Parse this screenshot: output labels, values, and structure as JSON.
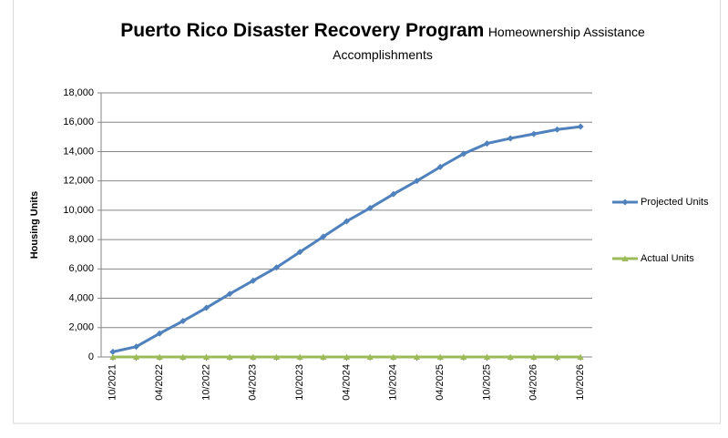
{
  "chart_data": {
    "type": "line",
    "title": "Puerto Rico Disaster Recovery Program",
    "subtitle": "Homeownership Assistance Accomplishments",
    "y_label": "Housing Units",
    "categories": [
      "10/2021",
      null,
      "04/2022",
      null,
      "10/2022",
      null,
      "04/2023",
      null,
      "10/2023",
      null,
      "04/2024",
      null,
      "10/2024",
      null,
      "04/2025",
      null,
      "10/2025",
      null,
      "04/2026",
      null,
      "10/2026"
    ],
    "series": [
      {
        "name": "Projected Units",
        "color": "#4f81bd",
        "marker": "diamond",
        "values": [
          350,
          700,
          1600,
          2450,
          3350,
          4300,
          5200,
          6100,
          7150,
          8200,
          9250,
          10150,
          11100,
          12000,
          12950,
          13850,
          14550,
          14900,
          15200,
          15500,
          15700
        ]
      },
      {
        "name": "Actual Units",
        "color": "#9bbb59",
        "marker": "triangle",
        "values": [
          0,
          0,
          0,
          0,
          0,
          0,
          0,
          0,
          0,
          0,
          0,
          0,
          0,
          0,
          0,
          0,
          0,
          0,
          0,
          0,
          0
        ]
      }
    ],
    "ylim": [
      0,
      18000
    ],
    "yticks": [
      0,
      {
        "value": 2000,
        "label": "2,000"
      },
      {
        "value": 4000,
        "label": "4,000"
      },
      {
        "value": 6000,
        "label": "6,000"
      },
      {
        "value": 8000,
        "label": "8,000"
      },
      {
        "value": 10000,
        "label": "10,000"
      },
      {
        "value": 12000,
        "label": "12,000"
      },
      {
        "value": 14000,
        "label": "14,000"
      },
      {
        "value": 16000,
        "label": "16,000"
      },
      {
        "value": 18000,
        "label": "18,000"
      }
    ],
    "grid": true,
    "legend": "right"
  }
}
